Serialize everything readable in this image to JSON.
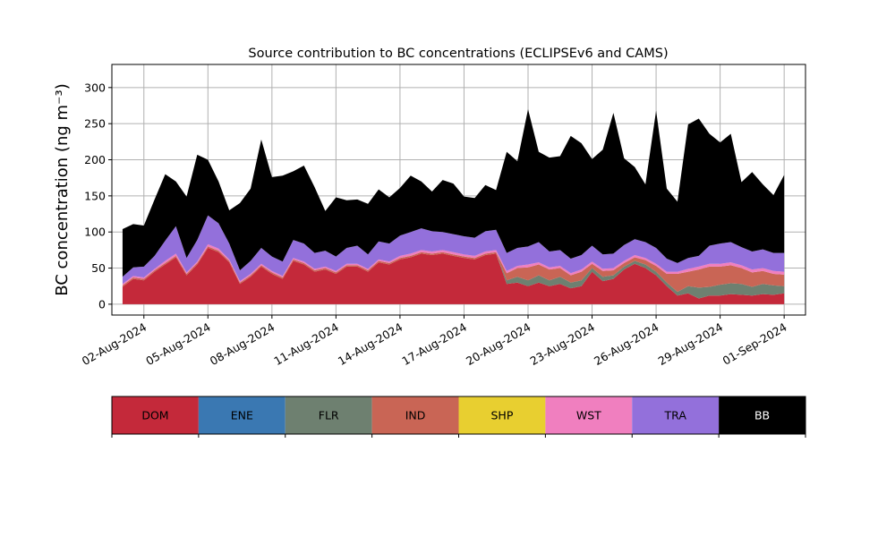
{
  "chart_data": {
    "type": "area",
    "stacked": true,
    "title": "Source contribution to BC concentrations (ECLIPSEv6 and CAMS)",
    "ylabel": "BC concentration (ng m⁻³)",
    "xlabel": "",
    "ylim": [
      -15,
      332
    ],
    "xlim": [
      "2024-07-31T12:00",
      "2024-09-02T00:00"
    ],
    "yticks": [
      0,
      50,
      100,
      150,
      200,
      250,
      300
    ],
    "xticks": [
      "02-Aug-2024",
      "05-Aug-2024",
      "08-Aug-2024",
      "11-Aug-2024",
      "14-Aug-2024",
      "17-Aug-2024",
      "20-Aug-2024",
      "23-Aug-2024",
      "26-Aug-2024",
      "29-Aug-2024",
      "01-Sep-2024"
    ],
    "grid": true,
    "legend_placement": "colorbar below",
    "x": [
      "2024-08-01T00:00",
      "2024-08-01T12:00",
      "2024-08-02T00:00",
      "2024-08-02T12:00",
      "2024-08-03T00:00",
      "2024-08-03T12:00",
      "2024-08-04T00:00",
      "2024-08-04T12:00",
      "2024-08-05T00:00",
      "2024-08-05T12:00",
      "2024-08-06T00:00",
      "2024-08-06T12:00",
      "2024-08-07T00:00",
      "2024-08-07T12:00",
      "2024-08-08T00:00",
      "2024-08-08T12:00",
      "2024-08-09T00:00",
      "2024-08-09T12:00",
      "2024-08-10T00:00",
      "2024-08-10T12:00",
      "2024-08-11T00:00",
      "2024-08-11T12:00",
      "2024-08-12T00:00",
      "2024-08-12T12:00",
      "2024-08-13T00:00",
      "2024-08-13T12:00",
      "2024-08-14T00:00",
      "2024-08-14T12:00",
      "2024-08-15T00:00",
      "2024-08-15T12:00",
      "2024-08-16T00:00",
      "2024-08-16T12:00",
      "2024-08-17T00:00",
      "2024-08-17T12:00",
      "2024-08-18T00:00",
      "2024-08-18T12:00",
      "2024-08-19T00:00",
      "2024-08-19T12:00",
      "2024-08-20T00:00",
      "2024-08-20T12:00",
      "2024-08-21T00:00",
      "2024-08-21T12:00",
      "2024-08-22T00:00",
      "2024-08-22T12:00",
      "2024-08-23T00:00",
      "2024-08-23T12:00",
      "2024-08-24T00:00",
      "2024-08-24T12:00",
      "2024-08-25T00:00",
      "2024-08-25T12:00",
      "2024-08-26T00:00",
      "2024-08-26T12:00",
      "2024-08-27T00:00",
      "2024-08-27T12:00",
      "2024-08-28T00:00",
      "2024-08-28T12:00",
      "2024-08-29T00:00",
      "2024-08-29T12:00",
      "2024-08-30T00:00",
      "2024-08-30T12:00",
      "2024-08-31T00:00",
      "2024-08-31T12:00",
      "2024-09-01T00:00"
    ],
    "series": [
      {
        "name": "DOM",
        "color": "#c4293a",
        "values": [
          24,
          35,
          33,
          45,
          55,
          65,
          40,
          55,
          78,
          72,
          58,
          28,
          38,
          52,
          42,
          35,
          60,
          55,
          45,
          48,
          42,
          52,
          52,
          45,
          58,
          55,
          62,
          65,
          70,
          68,
          70,
          67,
          64,
          62,
          68,
          70,
          28,
          30,
          25,
          30,
          25,
          28,
          22,
          25,
          45,
          32,
          35,
          48,
          56,
          50,
          40,
          25,
          12,
          15,
          8,
          12,
          12,
          14,
          13,
          12,
          14,
          13,
          15
        ]
      },
      {
        "name": "ENE",
        "color": "#3a78b2",
        "values": [
          0,
          0,
          0,
          0,
          0,
          0,
          0,
          0,
          0,
          0,
          0,
          0,
          0,
          0,
          0,
          0,
          0,
          0,
          0,
          0,
          0,
          0,
          0,
          0,
          0,
          0,
          0,
          0,
          0,
          0,
          0,
          0,
          0,
          0,
          0,
          0,
          0,
          0,
          0,
          0,
          0,
          0,
          0,
          0,
          0,
          0,
          0,
          0,
          0,
          0,
          0,
          0,
          0,
          0,
          0,
          0,
          0,
          0,
          0,
          0,
          0,
          0,
          0
        ]
      },
      {
        "name": "FLR",
        "color": "#6e8070",
        "values": [
          0,
          0,
          0,
          0,
          0,
          0,
          0,
          0,
          0,
          0,
          0,
          0,
          0,
          0,
          0,
          0,
          0,
          0,
          0,
          0,
          0,
          0,
          0,
          0,
          0,
          0,
          0,
          0,
          0,
          0,
          0,
          0,
          0,
          0,
          0,
          0,
          5,
          8,
          8,
          10,
          8,
          10,
          8,
          8,
          5,
          6,
          5,
          4,
          4,
          5,
          5,
          5,
          5,
          10,
          15,
          12,
          15,
          15,
          15,
          12,
          14,
          13,
          10
        ]
      },
      {
        "name": "IND",
        "color": "#c96555",
        "values": [
          2,
          2,
          2,
          2,
          2,
          2,
          2,
          2,
          2,
          2,
          2,
          2,
          2,
          2,
          2,
          2,
          2,
          2,
          2,
          2,
          2,
          2,
          2,
          2,
          2,
          2,
          2,
          2,
          2,
          2,
          2,
          2,
          2,
          2,
          2,
          2,
          10,
          12,
          18,
          15,
          15,
          12,
          10,
          12,
          6,
          8,
          7,
          5,
          5,
          6,
          8,
          12,
          25,
          20,
          25,
          28,
          25,
          25,
          22,
          20,
          18,
          16,
          16
        ]
      },
      {
        "name": "SHP",
        "color": "#e8cf30",
        "values": [
          0,
          0,
          0,
          0,
          0,
          0,
          0,
          0,
          0,
          0,
          0,
          0,
          0,
          0,
          0,
          0,
          0,
          0,
          0,
          0,
          0,
          0,
          0,
          0,
          0,
          0,
          0,
          0,
          0,
          0,
          0,
          0,
          0,
          0,
          0,
          0,
          0,
          0,
          0,
          0,
          0,
          0,
          0,
          0,
          0,
          0,
          0,
          0,
          0,
          0,
          0,
          0,
          0,
          0,
          0,
          0,
          0,
          0,
          0,
          0,
          0,
          0,
          0
        ]
      },
      {
        "name": "WST",
        "color": "#f07fbf",
        "values": [
          2,
          2,
          2,
          2,
          3,
          3,
          2,
          2,
          3,
          3,
          2,
          2,
          2,
          2,
          2,
          2,
          2,
          2,
          2,
          2,
          2,
          2,
          2,
          2,
          2,
          2,
          3,
          3,
          3,
          3,
          3,
          3,
          3,
          3,
          3,
          3,
          3,
          3,
          4,
          3,
          3,
          3,
          3,
          3,
          3,
          3,
          3,
          3,
          3,
          3,
          3,
          3,
          3,
          4,
          4,
          4,
          4,
          4,
          4,
          4,
          4,
          4,
          4
        ]
      },
      {
        "name": "TRA",
        "color": "#9370db",
        "values": [
          10,
          12,
          15,
          18,
          28,
          38,
          20,
          30,
          40,
          35,
          22,
          15,
          18,
          22,
          20,
          20,
          25,
          25,
          22,
          22,
          20,
          22,
          25,
          20,
          25,
          25,
          28,
          30,
          30,
          28,
          25,
          25,
          25,
          25,
          28,
          28,
          25,
          25,
          25,
          28,
          22,
          22,
          20,
          20,
          22,
          20,
          20,
          22,
          22,
          22,
          22,
          18,
          12,
          15,
          15,
          25,
          28,
          28,
          25,
          25,
          26,
          25,
          26
        ]
      },
      {
        "name": "BB",
        "color": "#000000",
        "values": [
          66,
          60,
          57,
          78,
          92,
          62,
          85,
          118,
          77,
          58,
          46,
          93,
          100,
          150,
          110,
          119,
          95,
          108,
          91,
          55,
          82,
          66,
          64,
          70,
          72,
          64,
          66,
          78,
          65,
          55,
          72,
          70,
          55,
          55,
          64,
          55,
          140,
          120,
          190,
          125,
          130,
          130,
          170,
          155,
          120,
          145,
          195,
          120,
          100,
          80,
          190,
          97,
          85,
          185,
          190,
          155,
          140,
          150,
          90,
          110,
          90,
          80,
          108
        ]
      }
    ]
  }
}
